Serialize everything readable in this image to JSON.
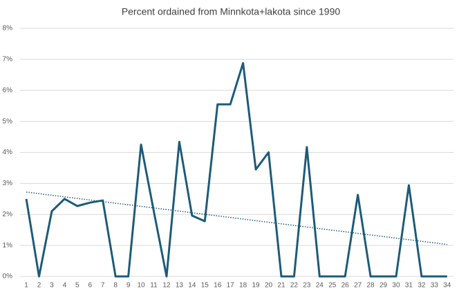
{
  "chart_data": {
    "type": "line",
    "title": "Percent ordained from Minnkota+lakota since 1990",
    "categories": [
      "1",
      "2",
      "3",
      "4",
      "5",
      "6",
      "7",
      "8",
      "9",
      "10",
      "11",
      "12",
      "13",
      "14",
      "15",
      "16",
      "17",
      "18",
      "19",
      "20",
      "21",
      "22",
      "23",
      "24",
      "25",
      "26",
      "27",
      "28",
      "29",
      "30",
      "31",
      "32",
      "33",
      "34"
    ],
    "series": [
      {
        "color": "#1d5b79",
        "values": [
          2.5,
          0,
          2.1,
          2.5,
          2.27,
          2.38,
          2.45,
          0,
          0,
          4.25,
          2.1,
          0,
          4.34,
          1.96,
          1.78,
          5.55,
          5.55,
          6.88,
          3.45,
          4.0,
          0,
          0,
          4.17,
          0,
          0,
          0,
          2.63,
          0,
          0,
          0,
          2.94,
          0,
          0,
          0
        ]
      }
    ],
    "trendline": {
      "values": [
        2.72,
        1.03
      ],
      "color": "#1d5b79",
      "dash": "dotted"
    },
    "ylim": [
      0,
      8
    ],
    "yticks": [
      {
        "value": 0,
        "label": "0%"
      },
      {
        "value": 1,
        "label": "1%"
      },
      {
        "value": 2,
        "label": "2%"
      },
      {
        "value": 3,
        "label": "3%"
      },
      {
        "value": 4,
        "label": "4%"
      },
      {
        "value": 5,
        "label": "5%"
      },
      {
        "value": 6,
        "label": "6%"
      },
      {
        "value": 7,
        "label": "7%"
      },
      {
        "value": 8,
        "label": "8%"
      }
    ],
    "grid": true
  }
}
